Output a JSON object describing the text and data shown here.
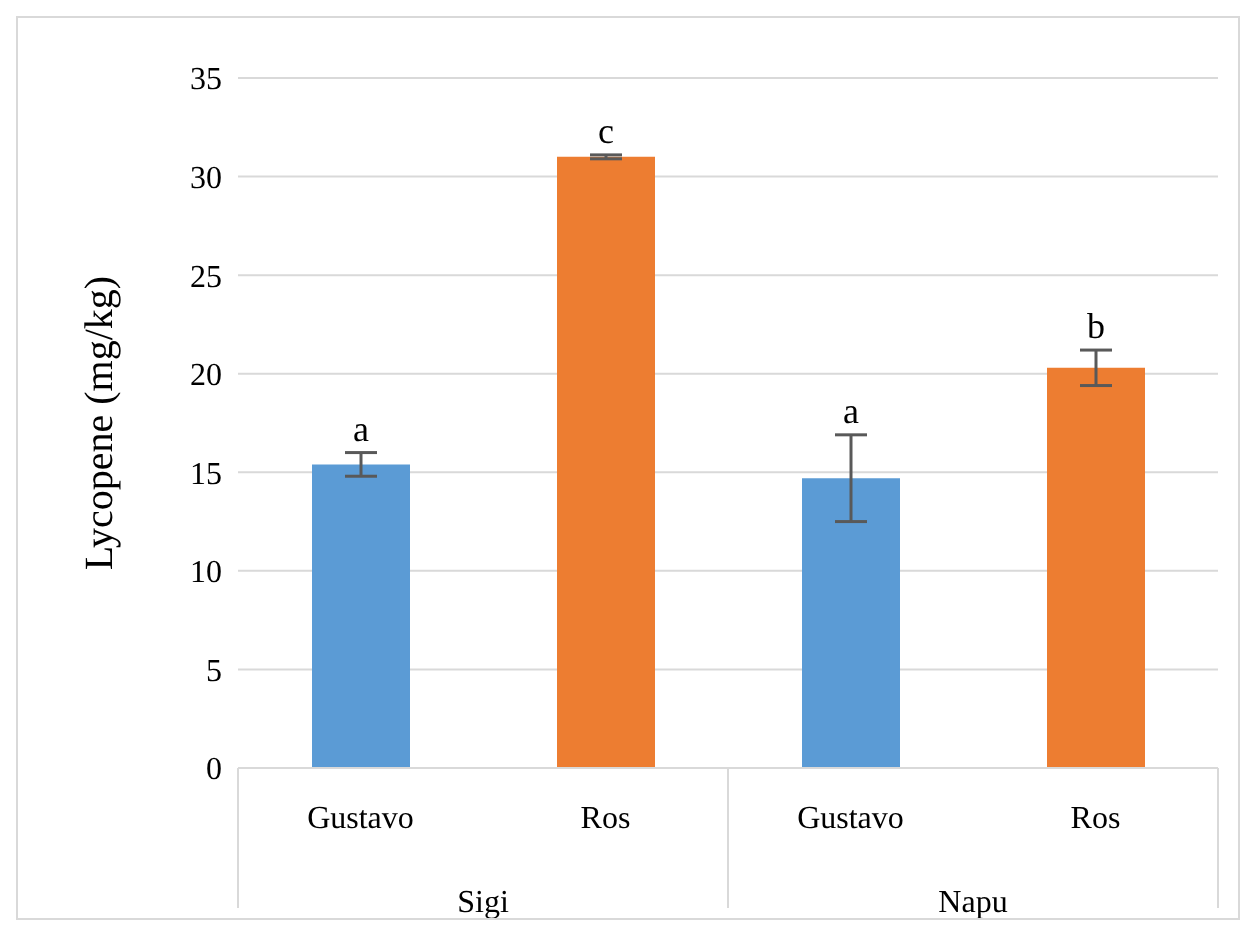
{
  "chart_data": {
    "type": "bar",
    "ylabel": "Lycopene (mg/kg)",
    "categories": [
      "Gustavo",
      "Ros",
      "Gustavo",
      "Ros"
    ],
    "values": [
      15.4,
      31.0,
      14.7,
      20.3
    ],
    "colors": [
      "#5b9bd5",
      "#ed7d31",
      "#5b9bd5",
      "#ed7d31"
    ],
    "errors": [
      0.6,
      0.1,
      2.2,
      0.9
    ],
    "value_labels": [
      "a",
      "c",
      "a",
      "b"
    ],
    "annotations": [
      "Sigi",
      "Napu"
    ],
    "ylim": [
      0,
      35
    ],
    "yticks": [
      0,
      5,
      10,
      15,
      20,
      25,
      30,
      35
    ],
    "grid": "y"
  }
}
